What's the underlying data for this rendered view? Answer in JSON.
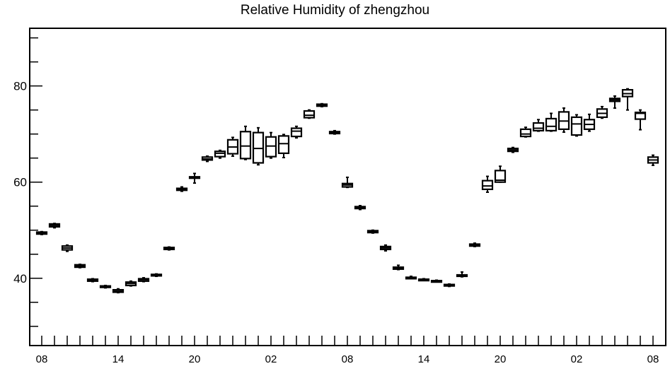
{
  "chart_data": {
    "type": "box",
    "title": "Relative Humidity of zhengzhou",
    "xlabel": "",
    "ylabel": "",
    "ylim": [
      26,
      92
    ],
    "yticks": [
      40,
      60,
      80
    ],
    "grid": false,
    "x_tick_labels": [
      "08",
      "14",
      "20",
      "02",
      "08",
      "14",
      "20",
      "02",
      "08"
    ],
    "x_tick_label_hours": [
      0,
      6,
      12,
      18,
      24,
      30,
      36,
      42,
      48
    ],
    "boxes": [
      {
        "hour": 0,
        "whisker_low": 49.1,
        "q1": 49.2,
        "median": 49.4,
        "q3": 49.6,
        "whisker_high": 49.7
      },
      {
        "hour": 1,
        "whisker_low": 50.5,
        "q1": 50.7,
        "median": 51.0,
        "q3": 51.3,
        "whisker_high": 51.4
      },
      {
        "hour": 2,
        "whisker_low": 45.6,
        "q1": 45.9,
        "median": 46.3,
        "q3": 46.7,
        "whisker_high": 46.9
      },
      {
        "hour": 3,
        "whisker_low": 42.2,
        "q1": 42.3,
        "median": 42.6,
        "q3": 42.8,
        "whisker_high": 42.9
      },
      {
        "hour": 4,
        "whisker_low": 39.3,
        "q1": 39.4,
        "median": 39.6,
        "q3": 39.8,
        "whisker_high": 39.9
      },
      {
        "hour": 5,
        "whisker_low": 38.0,
        "q1": 38.1,
        "median": 38.3,
        "q3": 38.4,
        "whisker_high": 38.5
      },
      {
        "hour": 6,
        "whisker_low": 37.0,
        "q1": 37.1,
        "median": 37.3,
        "q3": 37.6,
        "whisker_high": 37.8
      },
      {
        "hour": 7,
        "whisker_low": 38.4,
        "q1": 38.5,
        "median": 38.9,
        "q3": 39.2,
        "whisker_high": 39.4
      },
      {
        "hour": 8,
        "whisker_low": 39.3,
        "q1": 39.4,
        "median": 39.7,
        "q3": 39.9,
        "whisker_high": 40.1
      },
      {
        "hour": 9,
        "whisker_low": 40.4,
        "q1": 40.5,
        "median": 40.7,
        "q3": 40.8,
        "whisker_high": 40.9
      },
      {
        "hour": 10,
        "whisker_low": 45.9,
        "q1": 46.0,
        "median": 46.2,
        "q3": 46.4,
        "whisker_high": 46.5
      },
      {
        "hour": 11,
        "whisker_low": 58.1,
        "q1": 58.3,
        "median": 58.5,
        "q3": 58.7,
        "whisker_high": 59.0
      },
      {
        "hour": 12,
        "whisker_low": 59.8,
        "q1": 60.9,
        "median": 61.0,
        "q3": 61.1,
        "whisker_high": 61.8
      },
      {
        "hour": 13,
        "whisker_low": 64.3,
        "q1": 64.6,
        "median": 64.8,
        "q3": 65.2,
        "whisker_high": 65.4
      },
      {
        "hour": 14,
        "whisker_low": 65.0,
        "q1": 65.3,
        "median": 66.0,
        "q3": 66.4,
        "whisker_high": 66.6
      },
      {
        "hour": 15,
        "whisker_low": 65.4,
        "q1": 65.9,
        "median": 67.3,
        "q3": 68.8,
        "whisker_high": 69.3
      },
      {
        "hour": 16,
        "whisker_low": 64.7,
        "q1": 64.9,
        "median": 67.5,
        "q3": 70.5,
        "whisker_high": 71.6
      },
      {
        "hour": 17,
        "whisker_low": 63.6,
        "q1": 64.0,
        "median": 67.0,
        "q3": 70.3,
        "whisker_high": 71.3
      },
      {
        "hour": 18,
        "whisker_low": 65.0,
        "q1": 65.3,
        "median": 67.5,
        "q3": 69.4,
        "whisker_high": 70.3
      },
      {
        "hour": 19,
        "whisker_low": 65.1,
        "q1": 66.0,
        "median": 68.0,
        "q3": 69.6,
        "whisker_high": 69.9
      },
      {
        "hour": 20,
        "whisker_low": 69.2,
        "q1": 69.5,
        "median": 70.6,
        "q3": 71.2,
        "whisker_high": 71.6
      },
      {
        "hour": 21,
        "whisker_low": 73.3,
        "q1": 73.4,
        "median": 73.9,
        "q3": 74.8,
        "whisker_high": 75.0
      },
      {
        "hour": 22,
        "whisker_low": 75.7,
        "q1": 75.8,
        "median": 76.0,
        "q3": 76.2,
        "whisker_high": 76.3
      },
      {
        "hour": 23,
        "whisker_low": 70.0,
        "q1": 70.1,
        "median": 70.3,
        "q3": 70.5,
        "whisker_high": 70.7
      },
      {
        "hour": 24,
        "whisker_low": 58.9,
        "q1": 59.0,
        "median": 59.4,
        "q3": 59.7,
        "whisker_high": 61.0
      },
      {
        "hour": 25,
        "whisker_low": 54.3,
        "q1": 54.5,
        "median": 54.7,
        "q3": 54.9,
        "whisker_high": 55.1
      },
      {
        "hour": 26,
        "whisker_low": 49.4,
        "q1": 49.5,
        "median": 49.7,
        "q3": 49.9,
        "whisker_high": 50.0
      },
      {
        "hour": 27,
        "whisker_low": 45.7,
        "q1": 46.0,
        "median": 46.3,
        "q3": 46.6,
        "whisker_high": 46.9
      },
      {
        "hour": 28,
        "whisker_low": 41.8,
        "q1": 41.9,
        "median": 42.1,
        "q3": 42.3,
        "whisker_high": 42.7
      },
      {
        "hour": 29,
        "whisker_low": 39.9,
        "q1": 40.0,
        "median": 40.1,
        "q3": 40.2,
        "whisker_high": 40.4
      },
      {
        "hour": 30,
        "whisker_low": 39.6,
        "q1": 39.7,
        "median": 39.8,
        "q3": 39.8,
        "whisker_high": 39.9
      },
      {
        "hour": 31,
        "whisker_low": 39.3,
        "q1": 39.3,
        "median": 39.4,
        "q3": 39.5,
        "whisker_high": 39.6
      },
      {
        "hour": 32,
        "whisker_low": 38.3,
        "q1": 38.4,
        "median": 38.5,
        "q3": 38.7,
        "whisker_high": 38.8
      },
      {
        "hour": 33,
        "whisker_low": 40.3,
        "q1": 40.5,
        "median": 40.6,
        "q3": 40.7,
        "whisker_high": 41.3
      },
      {
        "hour": 34,
        "whisker_low": 46.6,
        "q1": 46.7,
        "median": 46.9,
        "q3": 47.1,
        "whisker_high": 47.3
      },
      {
        "hour": 35,
        "whisker_low": 57.9,
        "q1": 58.5,
        "median": 59.2,
        "q3": 60.3,
        "whisker_high": 61.2
      },
      {
        "hour": 36,
        "whisker_low": 60.0,
        "q1": 60.0,
        "median": 60.4,
        "q3": 62.4,
        "whisker_high": 63.3
      },
      {
        "hour": 37,
        "whisker_low": 66.2,
        "q1": 66.4,
        "median": 66.7,
        "q3": 67.0,
        "whisker_high": 67.2
      },
      {
        "hour": 38,
        "whisker_low": 69.4,
        "q1": 69.5,
        "median": 70.0,
        "q3": 71.0,
        "whisker_high": 71.4
      },
      {
        "hour": 39,
        "whisker_low": 70.6,
        "q1": 70.7,
        "median": 71.2,
        "q3": 72.3,
        "whisker_high": 73.0
      },
      {
        "hour": 40,
        "whisker_low": 70.6,
        "q1": 70.7,
        "median": 71.6,
        "q3": 73.2,
        "whisker_high": 74.3
      },
      {
        "hour": 41,
        "whisker_low": 70.4,
        "q1": 71.0,
        "median": 72.7,
        "q3": 74.6,
        "whisker_high": 75.4
      },
      {
        "hour": 42,
        "whisker_low": 69.6,
        "q1": 69.8,
        "median": 72.1,
        "q3": 73.5,
        "whisker_high": 74.0
      },
      {
        "hour": 43,
        "whisker_low": 70.6,
        "q1": 71.0,
        "median": 72.0,
        "q3": 73.0,
        "whisker_high": 74.1
      },
      {
        "hour": 44,
        "whisker_low": 73.3,
        "q1": 73.5,
        "median": 74.3,
        "q3": 75.2,
        "whisker_high": 75.7
      },
      {
        "hour": 45,
        "whisker_low": 75.4,
        "q1": 76.8,
        "median": 77.1,
        "q3": 77.4,
        "whisker_high": 77.9
      },
      {
        "hour": 46,
        "whisker_low": 75.0,
        "q1": 77.8,
        "median": 78.4,
        "q3": 79.2,
        "whisker_high": 79.4
      },
      {
        "hour": 47,
        "whisker_low": 70.9,
        "q1": 73.1,
        "median": 74.3,
        "q3": 74.5,
        "whisker_high": 75.0
      },
      {
        "hour": 48,
        "whisker_low": 63.5,
        "q1": 64.0,
        "median": 64.6,
        "q3": 65.2,
        "whisker_high": 65.6
      }
    ]
  }
}
